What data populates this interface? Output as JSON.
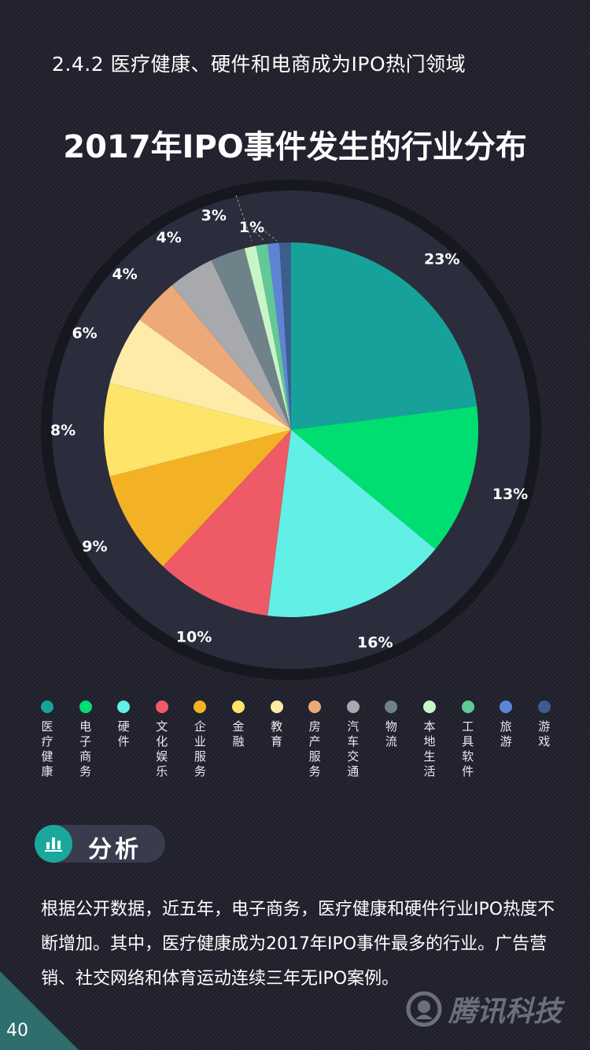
{
  "section_heading": "2.4.2 医疗健康、硬件和电商成为IPO热门领域",
  "chart_data": {
    "type": "pie",
    "title": "2017年IPO事件发生的行业分布",
    "slices": [
      {
        "name": "医疗健康",
        "value": 23,
        "label": "23%",
        "color": "#16a29a"
      },
      {
        "name": "电子商务",
        "value": 13,
        "label": "13%",
        "color": "#00de72"
      },
      {
        "name": "硬件",
        "value": 16,
        "label": "16%",
        "color": "#62efe6"
      },
      {
        "name": "文化娱乐",
        "value": 10,
        "label": "10%",
        "color": "#ee5a65"
      },
      {
        "name": "企业服务",
        "value": 9,
        "label": "9%",
        "color": "#f3b226"
      },
      {
        "name": "金融",
        "value": 8,
        "label": "8%",
        "color": "#ffe46a"
      },
      {
        "name": "教育",
        "value": 6,
        "label": "6%",
        "color": "#fdeba7"
      },
      {
        "name": "房产服务",
        "value": 4,
        "label": "4%",
        "color": "#eea978"
      },
      {
        "name": "汽车交通",
        "value": 4,
        "label": "4%",
        "color": "#a7a9ad"
      },
      {
        "name": "物流",
        "value": 3,
        "label": "3%",
        "color": "#6f8289"
      },
      {
        "name": "本地生活",
        "value": 1,
        "label": "",
        "color": "#c8f5c5"
      },
      {
        "name": "工具软件",
        "value": 1,
        "label": "1%",
        "color": "#62c896"
      },
      {
        "name": "旅游",
        "value": 1,
        "label": "",
        "color": "#5f84d6"
      },
      {
        "name": "游戏",
        "value": 1,
        "label": "",
        "color": "#3e5d8f"
      }
    ]
  },
  "analysis": {
    "label": "分析",
    "icon": "bar-chart-icon",
    "text": "根据公开数据，近五年，电子商务，医疗健康和硬件行业IPO热度不断增加。其中，医疗健康成为2017年IPO事件最多的行业。广告营销、社交网络和体育运动连续三年无IPO案例。"
  },
  "page_number": "40",
  "brand": {
    "name": "腾讯科技",
    "icon": "tencent-logo-icon"
  }
}
